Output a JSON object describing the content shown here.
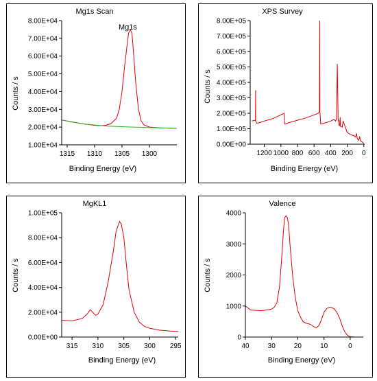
{
  "charts": [
    {
      "title": "Mg1s Scan",
      "xlabel": "Binding Energy (eV)",
      "ylabel": "Counts / s",
      "annotation": "Mg1s",
      "xticks": [
        "1315",
        "1310",
        "1305",
        "1300"
      ],
      "yticks": [
        "1.00E+04",
        "2.00E+04",
        "3.00E+04",
        "4.00E+04",
        "5.00E+04",
        "6.00E+04",
        "7.00E+04",
        "8.00E+04"
      ]
    },
    {
      "title": "XPS Survey",
      "xlabel": "Binding Energy (eV)",
      "ylabel": "Counts / s",
      "xticks": [
        "1200",
        "1000",
        "800",
        "600",
        "400",
        "200",
        "0"
      ],
      "yticks": [
        "0.00E+00",
        "1.00E+05",
        "2.00E+05",
        "3.00E+05",
        "4.00E+05",
        "5.00E+05",
        "6.00E+05",
        "7.00E+05",
        "8.00E+05"
      ]
    },
    {
      "title": "MgKL1",
      "xlabel": "Binding Energy (eV)",
      "ylabel": "Counts / s",
      "xticks": [
        "315",
        "310",
        "305",
        "300",
        "295"
      ],
      "yticks": [
        "0.00E+00",
        "2.00E+04",
        "4.00E+04",
        "6.00E+04",
        "8.00E+04",
        "1.00E+05"
      ]
    },
    {
      "title": "Valence",
      "xlabel": "Binding Energy (eV)",
      "ylabel": "Counts / s",
      "xticks": [
        "40",
        "30",
        "20",
        "10",
        "0"
      ],
      "yticks": [
        "0",
        "1000",
        "2000",
        "3000",
        "4000"
      ]
    }
  ],
  "colors": {
    "signal": "#e00000",
    "background": "#22b422",
    "axis": "#000000"
  },
  "chart_data": [
    {
      "type": "line",
      "title": "Mg1s Scan",
      "xlabel": "Binding Energy (eV)",
      "ylabel": "Counts / s",
      "xlim": [
        1316,
        1295
      ],
      "ylim": [
        10000,
        80000
      ],
      "series": [
        {
          "color": "#e00000",
          "x": [
            1316,
            1314,
            1312,
            1310,
            1309,
            1308,
            1307,
            1306,
            1305.5,
            1305,
            1304.5,
            1304,
            1303.8,
            1303.5,
            1303.2,
            1303,
            1302.5,
            1302,
            1301.5,
            1301,
            1300,
            1298,
            1296,
            1295
          ],
          "y": [
            24000,
            22800,
            21800,
            21000,
            20800,
            21000,
            22000,
            25000,
            30000,
            40000,
            55000,
            68000,
            73000,
            75000,
            73000,
            66000,
            45000,
            30000,
            23500,
            21200,
            20000,
            19600,
            19400,
            19300
          ]
        },
        {
          "color": "#22b422",
          "x": [
            1316,
            1312,
            1308,
            1304,
            1300,
            1296,
            1295
          ],
          "y": [
            24000,
            21800,
            20600,
            20100,
            19700,
            19400,
            19300
          ]
        }
      ]
    },
    {
      "type": "line",
      "title": "XPS Survey",
      "xlabel": "Binding Energy (eV)",
      "ylabel": "Counts / s",
      "xlim": [
        1370,
        -10
      ],
      "ylim": [
        0,
        800000
      ],
      "series": [
        {
          "color": "#e00000",
          "x": [
            1350,
            1306,
            1305,
            1304,
            1290,
            1250,
            1200,
            1100,
            1000,
            960,
            955,
            950,
            900,
            800,
            700,
            600,
            550,
            535,
            532,
            530,
            520,
            450,
            400,
            360,
            340,
            330,
            320,
            310,
            305,
            300,
            298,
            290,
            285,
            283,
            280,
            260,
            250,
            200,
            150,
            120,
            100,
            88,
            80,
            70,
            60,
            50,
            40,
            20,
            10,
            0
          ],
          "y": [
            150000,
            155000,
            350000,
            150000,
            135000,
            140000,
            150000,
            165000,
            190000,
            200000,
            140000,
            130000,
            140000,
            155000,
            170000,
            190000,
            200000,
            210000,
            800000,
            210000,
            130000,
            140000,
            150000,
            160000,
            150000,
            165000,
            520000,
            165000,
            150000,
            155000,
            120000,
            120000,
            175000,
            120000,
            115000,
            110000,
            150000,
            75000,
            60000,
            55000,
            45000,
            70000,
            40000,
            30000,
            25000,
            50000,
            20000,
            15000,
            10000,
            5000
          ]
        }
      ]
    },
    {
      "type": "line",
      "title": "MgKL1",
      "xlabel": "Binding Energy (eV)",
      "ylabel": "Counts / s",
      "xlim": [
        317,
        294.5
      ],
      "ylim": [
        0,
        100000
      ],
      "series": [
        {
          "color": "#e00000",
          "x": [
            317,
            315,
            313,
            312,
            311.5,
            311,
            310.5,
            310,
            309,
            308,
            307,
            306.5,
            306,
            305.8,
            305.5,
            305,
            304.5,
            304,
            303,
            302,
            301,
            300,
            298,
            296,
            294.5
          ],
          "y": [
            13500,
            13000,
            15000,
            19000,
            22000,
            20000,
            17500,
            18500,
            26000,
            45000,
            70000,
            85000,
            91000,
            93000,
            91000,
            80000,
            58000,
            38000,
            20000,
            12000,
            8500,
            7000,
            5500,
            4800,
            4500
          ]
        }
      ]
    },
    {
      "type": "line",
      "title": "Valence",
      "xlabel": "Binding Energy (eV)",
      "ylabel": "Counts / s",
      "xlim": [
        40,
        -5
      ],
      "ylim": [
        0,
        4000
      ],
      "series": [
        {
          "color": "#e00000",
          "x": [
            40,
            38,
            36,
            34,
            32,
            30,
            29,
            28,
            27,
            26,
            25.5,
            25,
            24.5,
            24,
            23.5,
            23,
            22,
            21,
            20,
            19,
            18,
            17,
            16,
            15,
            14,
            13,
            12,
            11,
            10,
            9,
            8,
            7,
            6,
            5,
            4,
            3,
            2,
            1,
            0,
            -2,
            -4,
            -5
          ],
          "y": [
            1000,
            870,
            860,
            850,
            870,
            900,
            960,
            1100,
            1600,
            2700,
            3400,
            3850,
            3900,
            3850,
            3600,
            3000,
            2000,
            1300,
            850,
            650,
            500,
            450,
            430,
            400,
            340,
            300,
            360,
            550,
            800,
            920,
            960,
            950,
            900,
            780,
            600,
            350,
            160,
            50,
            10,
            0,
            0,
            0
          ]
        }
      ]
    }
  ]
}
